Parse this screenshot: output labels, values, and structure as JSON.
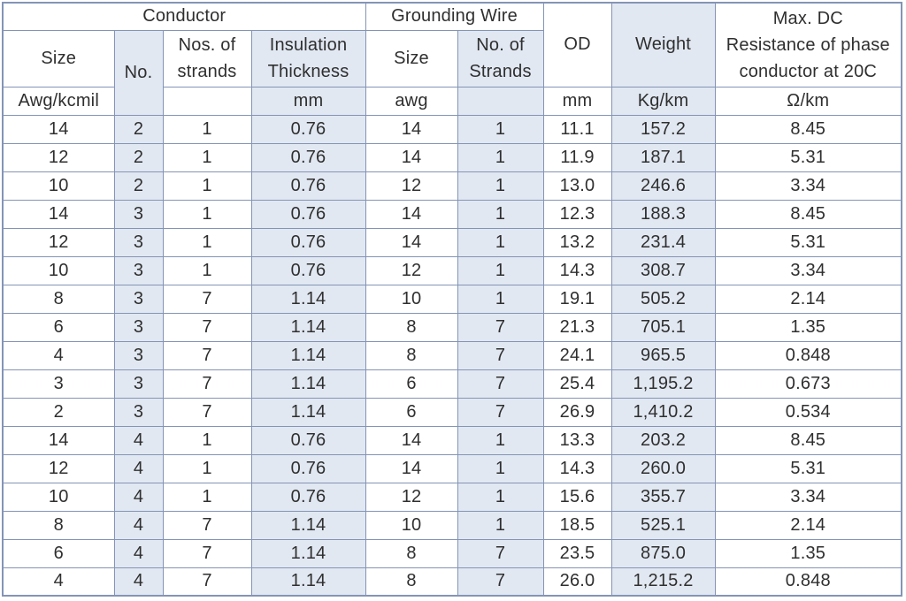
{
  "colors": {
    "border": "#8494b5",
    "column_shade": "#e1e8f2",
    "text": "#2f2f2f",
    "background": "#ffffff"
  },
  "table": {
    "groups": {
      "conductor": "Conductor",
      "grounding_wire": "Grounding Wire"
    },
    "headers": {
      "conductor_size": "Size",
      "conductor_no": "No.",
      "conductor_strands_l1": "Nos. of",
      "conductor_strands_l2": "strands",
      "insulation_l1": "Insulation",
      "insulation_l2": "Thickness",
      "grounding_size": "Size",
      "grounding_strands_l1": "No. of",
      "grounding_strands_l2": "Strands",
      "od": "OD",
      "weight": "Weight",
      "resistance_l1": "Max. DC",
      "resistance_l2": "Resistance of phase",
      "resistance_l3": "conductor at 20C"
    },
    "units": {
      "conductor_size": "Awg/kcmil",
      "conductor_strands": "",
      "insulation": "mm",
      "grounding_size": "awg",
      "grounding_strands": "",
      "od": "mm",
      "weight": "Kg/km",
      "resistance": "Ω/km"
    },
    "rows": [
      [
        "14",
        "2",
        "1",
        "0.76",
        "14",
        "1",
        "11.1",
        "157.2",
        "8.45"
      ],
      [
        "12",
        "2",
        "1",
        "0.76",
        "14",
        "1",
        "11.9",
        "187.1",
        "5.31"
      ],
      [
        "10",
        "2",
        "1",
        "0.76",
        "12",
        "1",
        "13.0",
        "246.6",
        "3.34"
      ],
      [
        "14",
        "3",
        "1",
        "0.76",
        "14",
        "1",
        "12.3",
        "188.3",
        "8.45"
      ],
      [
        "12",
        "3",
        "1",
        "0.76",
        "14",
        "1",
        "13.2",
        "231.4",
        "5.31"
      ],
      [
        "10",
        "3",
        "1",
        "0.76",
        "12",
        "1",
        "14.3",
        "308.7",
        "3.34"
      ],
      [
        "8",
        "3",
        "7",
        "1.14",
        "10",
        "1",
        "19.1",
        "505.2",
        "2.14"
      ],
      [
        "6",
        "3",
        "7",
        "1.14",
        "8",
        "7",
        "21.3",
        "705.1",
        "1.35"
      ],
      [
        "4",
        "3",
        "7",
        "1.14",
        "8",
        "7",
        "24.1",
        "965.5",
        "0.848"
      ],
      [
        "3",
        "3",
        "7",
        "1.14",
        "6",
        "7",
        "25.4",
        "1,195.2",
        "0.673"
      ],
      [
        "2",
        "3",
        "7",
        "1.14",
        "6",
        "7",
        "26.9",
        "1,410.2",
        "0.534"
      ],
      [
        "14",
        "4",
        "1",
        "0.76",
        "14",
        "1",
        "13.3",
        "203.2",
        "8.45"
      ],
      [
        "12",
        "4",
        "1",
        "0.76",
        "14",
        "1",
        "14.3",
        "260.0",
        "5.31"
      ],
      [
        "10",
        "4",
        "1",
        "0.76",
        "12",
        "1",
        "15.6",
        "355.7",
        "3.34"
      ],
      [
        "8",
        "4",
        "7",
        "1.14",
        "10",
        "1",
        "18.5",
        "525.1",
        "2.14"
      ],
      [
        "6",
        "4",
        "7",
        "1.14",
        "8",
        "7",
        "23.5",
        "875.0",
        "1.35"
      ],
      [
        "4",
        "4",
        "7",
        "1.14",
        "8",
        "7",
        "26.0",
        "1,215.2",
        "0.848"
      ]
    ]
  }
}
